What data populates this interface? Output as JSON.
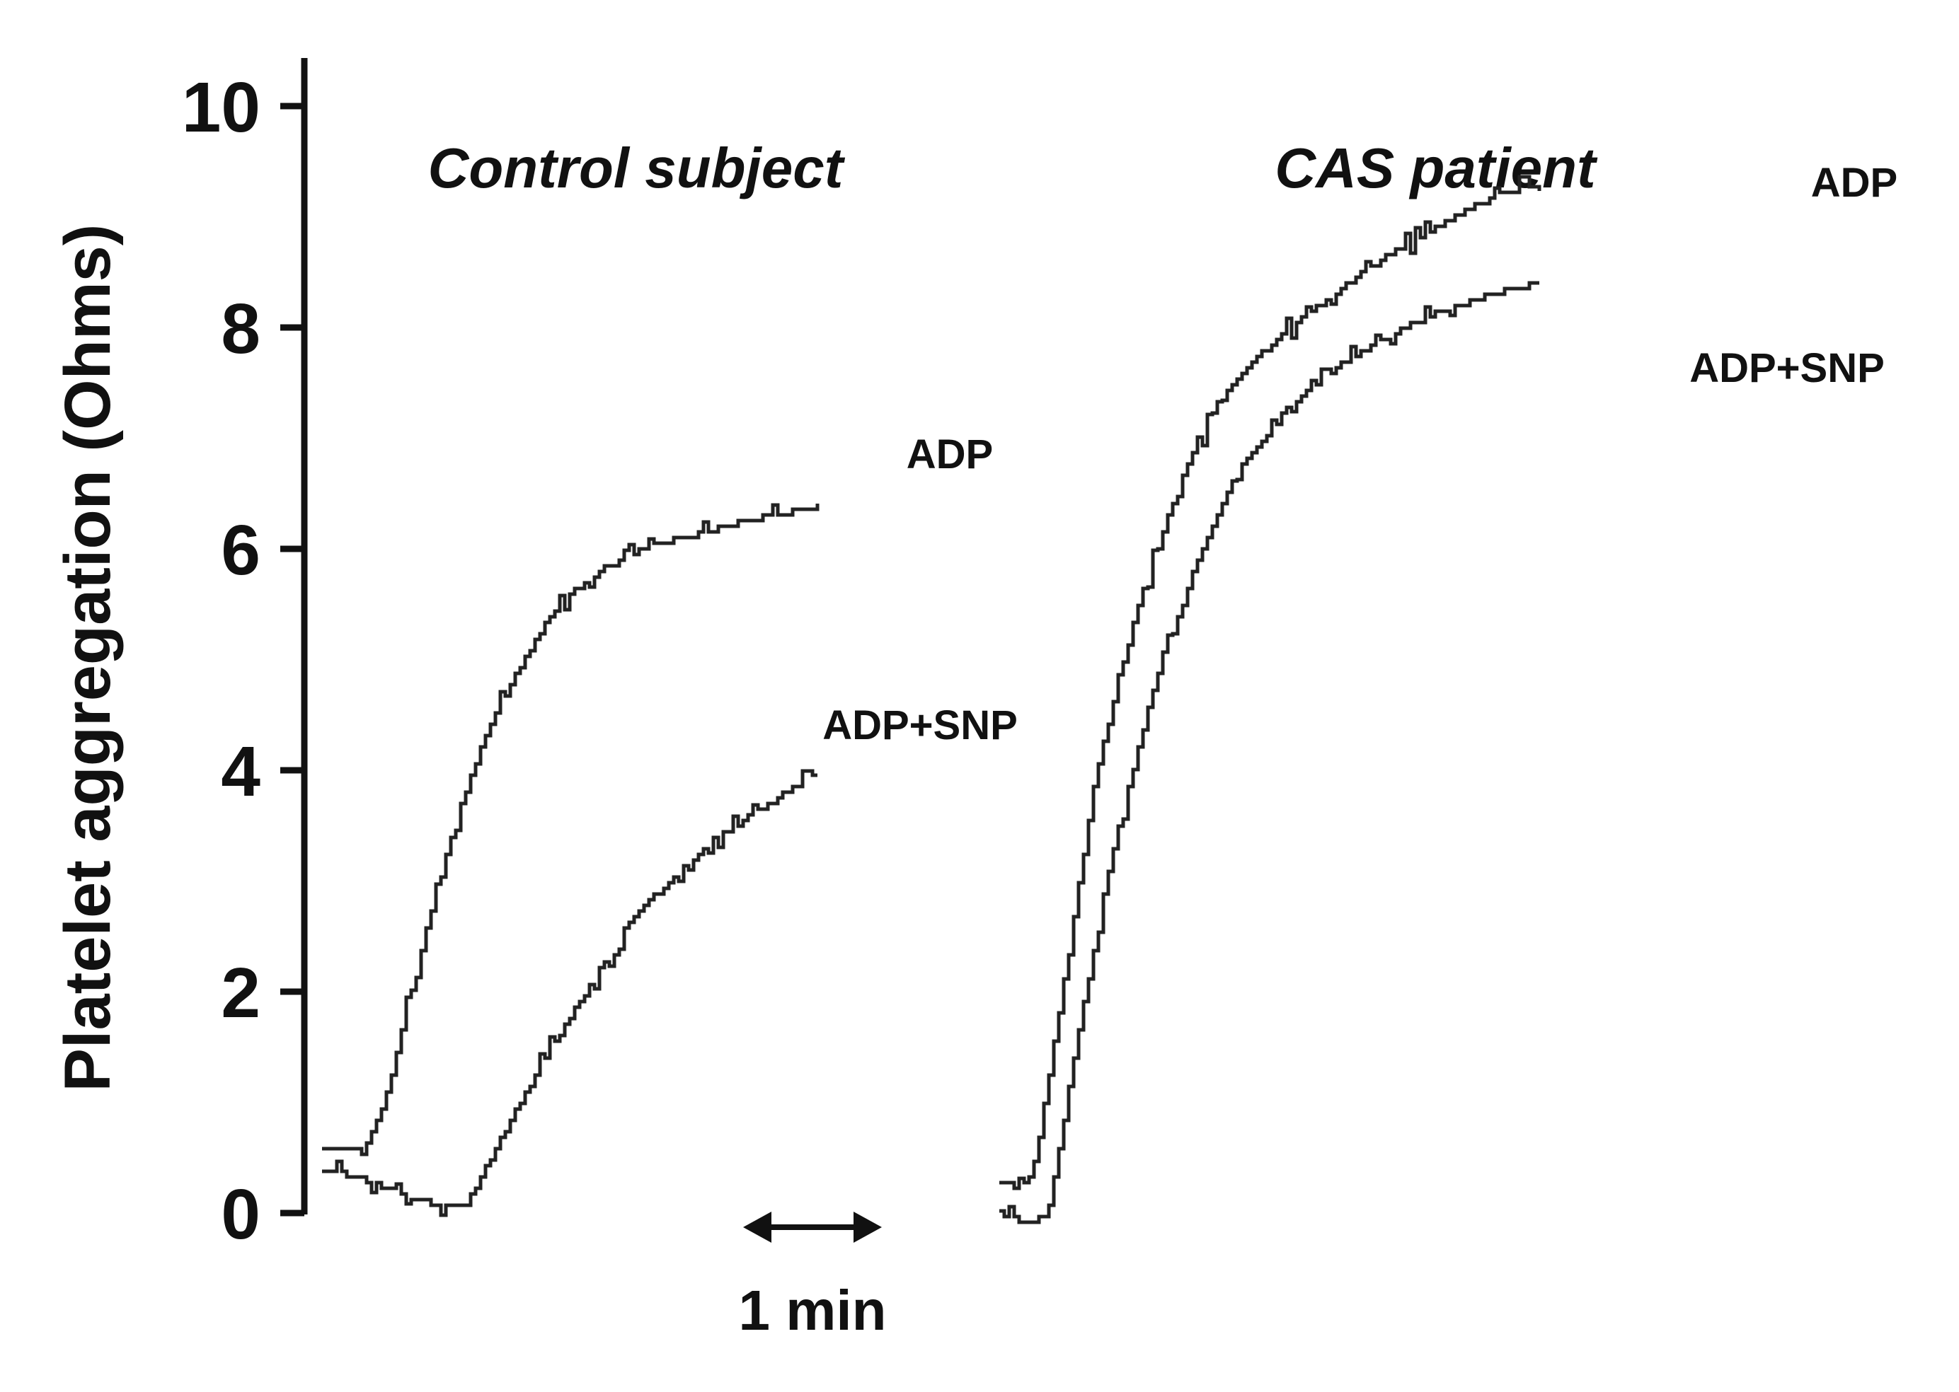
{
  "chart_data": {
    "type": "line",
    "ylabel": "Platelet aggregation (Ohms)",
    "ylim": [
      0,
      10
    ],
    "yticks": [
      0,
      2,
      4,
      6,
      8,
      10
    ],
    "yticklabels": [
      "0",
      "2",
      "4",
      "6",
      "8",
      "10"
    ],
    "scale_bar": {
      "label": "1 min",
      "minutes": 1
    },
    "panels": [
      {
        "title": "Control subject",
        "time_unit": "min",
        "series": [
          {
            "name": "ADP",
            "x": [
              0,
              0.3,
              0.45,
              0.6,
              0.8,
              1.0,
              1.2,
              1.45,
              1.7,
              2.0,
              2.3,
              2.6,
              2.9,
              3.2,
              3.45,
              3.6
            ],
            "y": [
              0.6,
              0.55,
              1.0,
              1.8,
              2.8,
              3.7,
              4.4,
              5.0,
              5.5,
              5.8,
              6.0,
              6.1,
              6.2,
              6.3,
              6.35,
              6.4
            ]
          },
          {
            "name": "ADP+SNP",
            "x": [
              0,
              0.3,
              0.6,
              0.9,
              1.05,
              1.3,
              1.6,
              1.9,
              2.2,
              2.5,
              2.8,
              3.1,
              3.4,
              3.6
            ],
            "y": [
              0.4,
              0.3,
              0.15,
              0.05,
              0.1,
              0.7,
              1.4,
              2.0,
              2.6,
              3.0,
              3.35,
              3.6,
              3.85,
              4.0
            ]
          }
        ]
      },
      {
        "title": "CAS patient",
        "time_unit": "min",
        "series": [
          {
            "name": "ADP",
            "x": [
              0,
              0.15,
              0.25,
              0.45,
              0.7,
              1.0,
              1.3,
              1.6,
              2.0,
              2.4,
              2.8,
              3.2,
              3.6,
              3.9
            ],
            "y": [
              0.3,
              0.2,
              0.4,
              2.0,
              4.0,
              5.5,
              6.6,
              7.4,
              7.9,
              8.3,
              8.65,
              8.95,
              9.2,
              9.3
            ]
          },
          {
            "name": "ADP+SNP",
            "x": [
              0,
              0.2,
              0.35,
              0.55,
              0.8,
              1.1,
              1.4,
              1.7,
              2.1,
              2.5,
              2.9,
              3.3,
              3.7,
              3.9
            ],
            "y": [
              0.0,
              -0.1,
              0.0,
              1.5,
              3.2,
              4.7,
              5.8,
              6.7,
              7.3,
              7.7,
              8.0,
              8.2,
              8.35,
              8.4
            ]
          }
        ]
      }
    ]
  }
}
